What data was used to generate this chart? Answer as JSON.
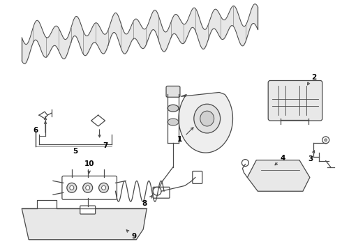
{
  "background_color": "#ffffff",
  "line_color": "#4a4a4a",
  "label_color": "#000000",
  "fig_width": 4.9,
  "fig_height": 3.6,
  "dpi": 100
}
